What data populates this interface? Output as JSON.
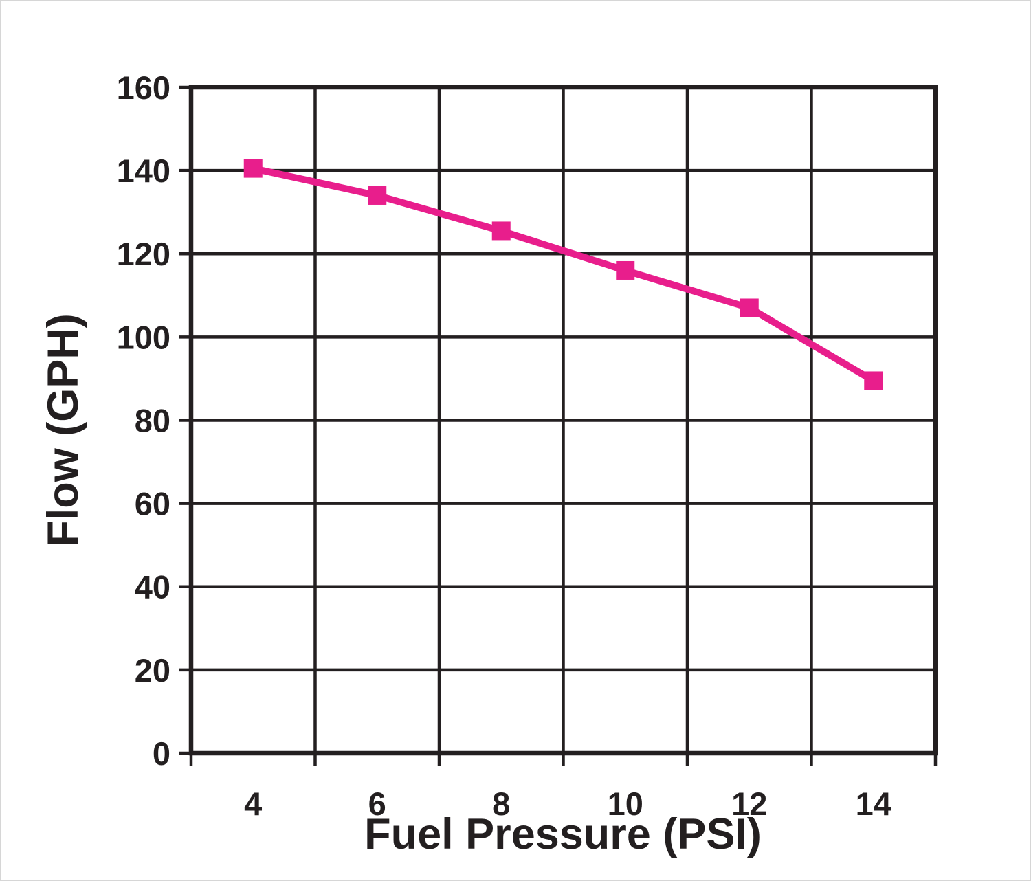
{
  "chart_data": {
    "type": "line",
    "x": [
      4,
      6,
      8,
      10,
      12,
      14
    ],
    "values": [
      140.5,
      134,
      125.5,
      116,
      107,
      89.5
    ],
    "title": "",
    "xlabel": "Fuel Pressure (PSI)",
    "ylabel": "Flow (GPH)",
    "xticks": [
      4,
      6,
      8,
      10,
      12,
      14
    ],
    "yticks": [
      0,
      20,
      40,
      60,
      80,
      100,
      120,
      140,
      160
    ],
    "xlim": [
      3,
      15
    ],
    "ylim": [
      0,
      160
    ],
    "grid": "on",
    "legend": "none",
    "line_color": "#E81E8C",
    "marker": "square",
    "marker_size": 27,
    "grid_color": "#231F20",
    "text_color": "#231F20",
    "background_color": "#ffffff"
  }
}
